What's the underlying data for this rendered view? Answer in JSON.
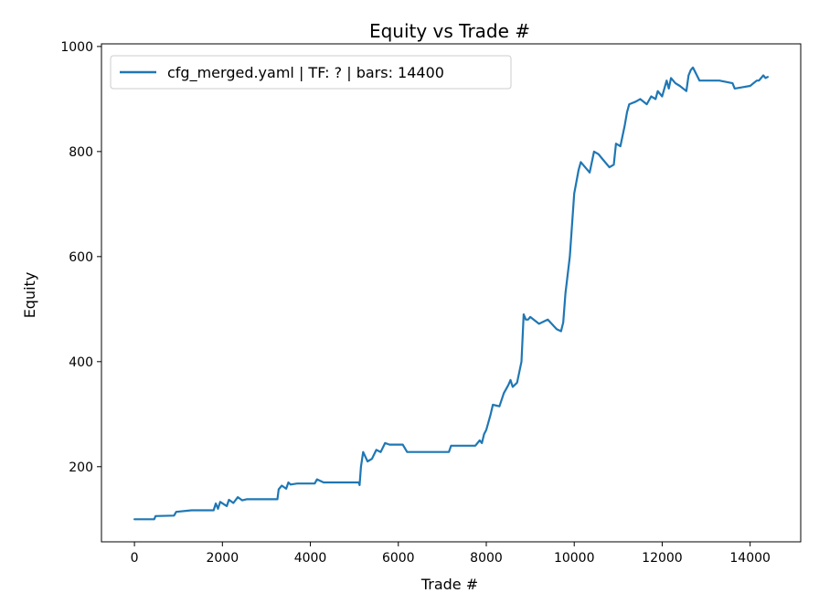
{
  "chart_data": {
    "type": "line",
    "title": "Equity vs Trade #",
    "xlabel": "Trade #",
    "ylabel": "Equity",
    "xlim": [
      -750,
      15150
    ],
    "ylim": [
      57,
      1005
    ],
    "xticks": [
      0,
      2000,
      4000,
      6000,
      8000,
      10000,
      12000,
      14000
    ],
    "yticks": [
      200,
      400,
      600,
      800,
      1000
    ],
    "grid": false,
    "legend_position": "upper-left",
    "series": [
      {
        "name": "cfg_merged.yaml | TF: ? | bars: 14400",
        "color": "#1f77b4",
        "x": [
          0,
          450,
          480,
          900,
          950,
          1300,
          1800,
          1850,
          1900,
          1950,
          2100,
          2150,
          2250,
          2350,
          2450,
          2550,
          3250,
          3280,
          3350,
          3450,
          3500,
          3550,
          3700,
          4100,
          4150,
          4250,
          4300,
          4600,
          5100,
          5120,
          5150,
          5200,
          5300,
          5400,
          5500,
          5600,
          5700,
          5800,
          6100,
          6200,
          7150,
          7200,
          7700,
          7750,
          7850,
          7900,
          7950,
          8000,
          8100,
          8150,
          8300,
          8400,
          8500,
          8550,
          8600,
          8700,
          8800,
          8850,
          8900,
          8950,
          9000,
          9200,
          9400,
          9600,
          9700,
          9750,
          9800,
          9900,
          10000,
          10100,
          10150,
          10250,
          10350,
          10450,
          10550,
          10650,
          10800,
          10900,
          10950,
          11050,
          11150,
          11200,
          11250,
          11400,
          11500,
          11650,
          11750,
          11850,
          11900,
          12000,
          12100,
          12150,
          12200,
          12300,
          12400,
          12550,
          12600,
          12650,
          12700,
          12850,
          12900,
          13300,
          13600,
          13650,
          13800,
          14000,
          14150,
          14200,
          14300,
          14350,
          14400
        ],
        "y": [
          100,
          100,
          106,
          107,
          114,
          117,
          117,
          130,
          120,
          133,
          125,
          137,
          131,
          142,
          136,
          138,
          138,
          157,
          164,
          158,
          170,
          166,
          168,
          168,
          176,
          172,
          170,
          170,
          170,
          165,
          200,
          228,
          210,
          215,
          232,
          228,
          245,
          242,
          242,
          228,
          228,
          240,
          240,
          240,
          250,
          245,
          262,
          270,
          300,
          318,
          315,
          340,
          355,
          365,
          352,
          360,
          400,
          490,
          480,
          480,
          485,
          472,
          480,
          462,
          458,
          475,
          530,
          600,
          720,
          765,
          780,
          770,
          760,
          800,
          795,
          785,
          770,
          775,
          815,
          810,
          850,
          875,
          890,
          895,
          900,
          890,
          905,
          900,
          915,
          905,
          935,
          920,
          940,
          930,
          925,
          915,
          945,
          955,
          960,
          935,
          935,
          935,
          930,
          920,
          922,
          925,
          935,
          935,
          945,
          940,
          942
        ]
      }
    ]
  }
}
